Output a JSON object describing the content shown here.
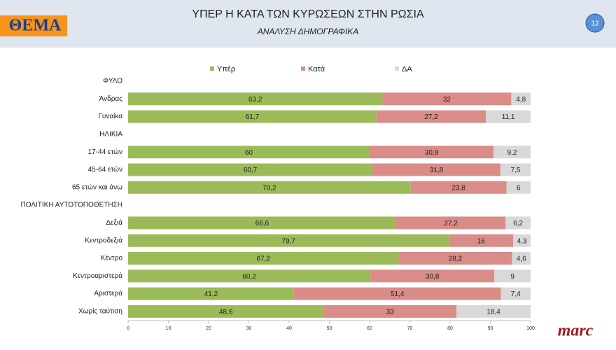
{
  "header": {
    "logo": "ΘΕΜΑ",
    "page_number": "12"
  },
  "footer": {
    "logo": "marc"
  },
  "chart_data": {
    "type": "stacked-bar",
    "orientation": "horizontal",
    "title": "ΥΠΕΡ Η ΚΑΤΑ ΤΩΝ ΚΥΡΩΣΕΩΝ ΣΤΗΝ ΡΩΣΙΑ",
    "subtitle": "ΑΝΑΛΥΣΗ ΔΗΜΟΓΡΑΦΙΚΑ",
    "categories": [
      "ΦΥΛΟ",
      "Άνδρας",
      "Γυναίκα",
      "ΗΛΙΚΙΑ",
      "17-44 ετών",
      "45-64 ετών",
      "65 ετών και άνω",
      "ΠΟΛΙΤΙΚΗ ΑΥΤΟΤΟΠΟΘΕΤΗΣΗ",
      "Δεξιά",
      "Κεντροδεξιά",
      "Κέντρο",
      "Κεντροαριστερά",
      "Αριστερά",
      "Χωρίς ταύτιση"
    ],
    "series": [
      {
        "name": "Υπέρ",
        "color": "#9bbb59",
        "values": [
          null,
          63.2,
          61.7,
          null,
          60,
          60.7,
          70.2,
          null,
          66.6,
          79.7,
          67.2,
          60.2,
          41.2,
          48.6
        ],
        "value_labels": [
          null,
          "63,2",
          "61,7",
          null,
          "60",
          "60,7",
          "70,2",
          null,
          "66,6",
          "79,7",
          "67,2",
          "60,2",
          "41,2",
          "48,6"
        ]
      },
      {
        "name": "Κατά",
        "color": "#d98c88",
        "values": [
          null,
          32,
          27.2,
          null,
          30.8,
          31.8,
          23.8,
          null,
          27.2,
          16,
          28.2,
          30.8,
          51.4,
          33
        ],
        "value_labels": [
          null,
          "32",
          "27,2",
          null,
          "30,8",
          "31,8",
          "23,8",
          null,
          "27,2",
          "16",
          "28,2",
          "30,8",
          "51,4",
          "33"
        ]
      },
      {
        "name": "ΔΑ",
        "color": "#d9d9d9",
        "values": [
          null,
          4.8,
          11.1,
          null,
          9.2,
          7.5,
          6,
          null,
          6.2,
          4.3,
          4.6,
          9,
          7.4,
          18.4
        ],
        "value_labels": [
          null,
          "4,8",
          "11,1",
          null,
          "9,2",
          "7,5",
          "6",
          null,
          "6,2",
          "4,3",
          "4,6",
          "9",
          "7,4",
          "18,4"
        ]
      }
    ],
    "xlim": [
      0,
      100
    ],
    "xticks": [
      0,
      10,
      20,
      30,
      40,
      50,
      60,
      70,
      80,
      90,
      100
    ]
  }
}
